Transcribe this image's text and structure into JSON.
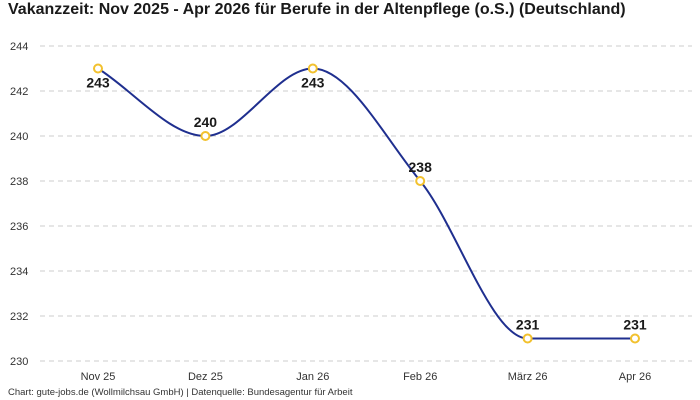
{
  "chart_data": {
    "type": "line",
    "title": "Vakanzzeit: Nov 2025 - Apr 2026 für Berufe in der Altenpflege (o.S.) (Deutschland)",
    "xlabel": "",
    "ylabel": "",
    "categories": [
      "Nov 25",
      "Dez 25",
      "Jan 26",
      "Feb 26",
      "März 26",
      "Apr 26"
    ],
    "series": [
      {
        "values": [
          243,
          240,
          243,
          238,
          231,
          231
        ],
        "data_labels": [
          "243",
          "240",
          "243",
          "238",
          "231",
          "231"
        ]
      }
    ],
    "ylim": [
      230,
      244
    ],
    "yticks": [
      "230",
      "232",
      "234",
      "236",
      "238",
      "240",
      "242",
      "244"
    ],
    "grid": true,
    "legend": "none",
    "colors": {
      "line": "#1f2f8f",
      "marker": "#f2c12e",
      "grid": "#cccccc"
    }
  },
  "footer": {
    "source": "Chart: gute-jobs.de (Wollmilchsau GmbH) | Datenquelle: Bundesagentur für Arbeit"
  }
}
